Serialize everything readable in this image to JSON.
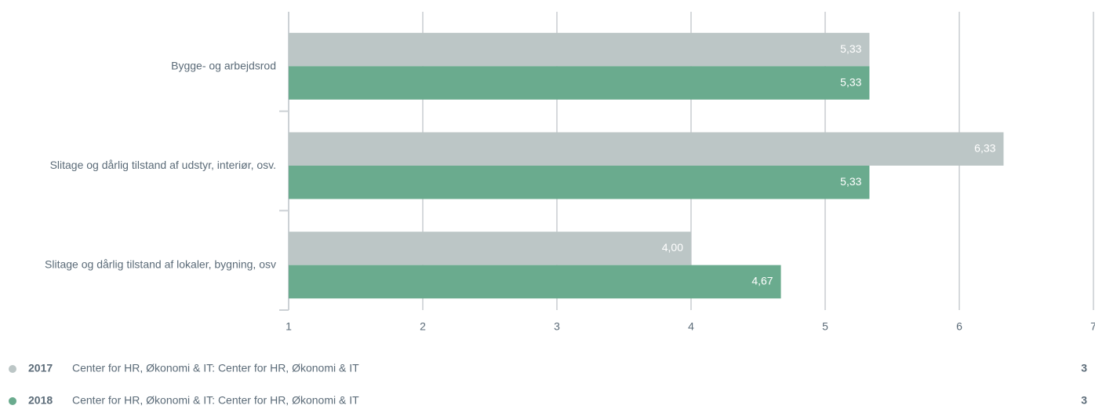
{
  "chart_data": {
    "type": "barh",
    "categories": [
      "Bygge- og arbejdsrod",
      "Slitage og dårlig tilstand af udstyr, interiør, osv.",
      "Slitage og dårlig tilstand af lokaler, bygning, osv"
    ],
    "series": [
      {
        "name": "2017",
        "description": "Center for HR, Økonomi & IT: Center for HR, Økonomi & IT",
        "count": 3,
        "color": "#bcc6c6",
        "values": [
          5.33,
          6.33,
          4.0
        ],
        "value_labels": [
          "5,33",
          "6,33",
          "4,00"
        ]
      },
      {
        "name": "2018",
        "description": "Center for HR, Økonomi & IT: Center for HR, Økonomi & IT",
        "count": 3,
        "color": "#6aab8e",
        "values": [
          5.33,
          5.33,
          4.67
        ],
        "value_labels": [
          "5,33",
          "5,33",
          "4,67"
        ]
      }
    ],
    "xlim": [
      1,
      7
    ],
    "xticks": [
      1,
      2,
      3,
      4,
      5,
      6,
      7
    ],
    "grid": true
  }
}
